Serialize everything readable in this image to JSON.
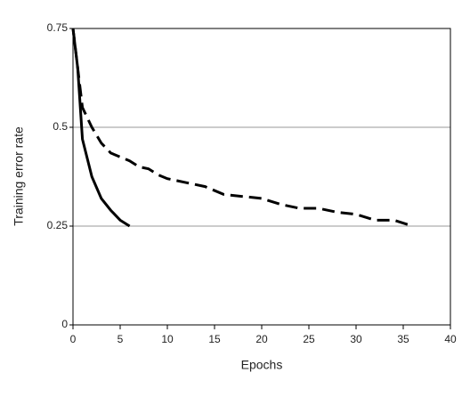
{
  "chart_data": {
    "type": "line",
    "x_label": "Epochs",
    "y_label": "Training error rate",
    "xlim": [
      0,
      40
    ],
    "xticks": [
      0,
      5,
      10,
      15,
      20,
      25,
      30,
      35,
      40
    ],
    "ylim": [
      0,
      0.75
    ],
    "yticks": [
      0,
      0.25,
      0.5,
      0.75
    ],
    "grid": true,
    "series": [
      {
        "color": "#000000",
        "style": "solid",
        "x": [
          0,
          0.5,
          1,
          2,
          3,
          4,
          5,
          6
        ],
        "values": [
          0.75,
          0.65,
          0.47,
          0.375,
          0.32,
          0.29,
          0.265,
          0.25
        ]
      },
      {
        "color": "#000000",
        "style": "dashed",
        "x": [
          0,
          1,
          2,
          3,
          4,
          5,
          6,
          7,
          8,
          9,
          10,
          12,
          14,
          16,
          18,
          20,
          22,
          24,
          26,
          28,
          30,
          32,
          34,
          36
        ],
        "values": [
          0.75,
          0.55,
          0.5,
          0.46,
          0.435,
          0.425,
          0.415,
          0.4,
          0.395,
          0.38,
          0.37,
          0.36,
          0.35,
          0.33,
          0.325,
          0.32,
          0.305,
          0.295,
          0.295,
          0.285,
          0.28,
          0.265,
          0.265,
          0.25
        ]
      }
    ]
  }
}
